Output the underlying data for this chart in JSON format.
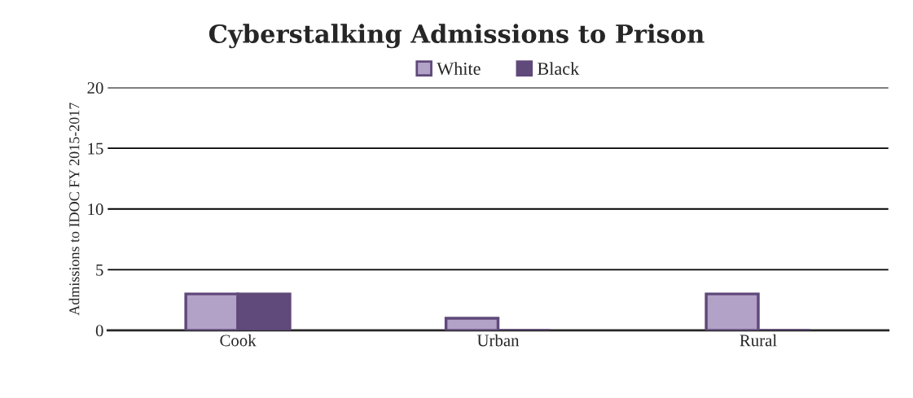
{
  "chart_data": {
    "type": "bar",
    "title": "Cyberstalking Admissions to Prison",
    "ylabel": "Admissions to IDOC FY 2015-2017",
    "categories": [
      "Cook",
      "Urban",
      "Rural"
    ],
    "series": [
      {
        "name": "White",
        "color": "#b3a2c7",
        "values": [
          3,
          1,
          3
        ]
      },
      {
        "name": "Black",
        "color": "#604a7b",
        "values": [
          3,
          0,
          0
        ]
      }
    ],
    "ylim": [
      0,
      20
    ],
    "yticks": [
      0,
      5,
      10,
      15,
      20
    ],
    "grid": "y",
    "legend": "top"
  }
}
